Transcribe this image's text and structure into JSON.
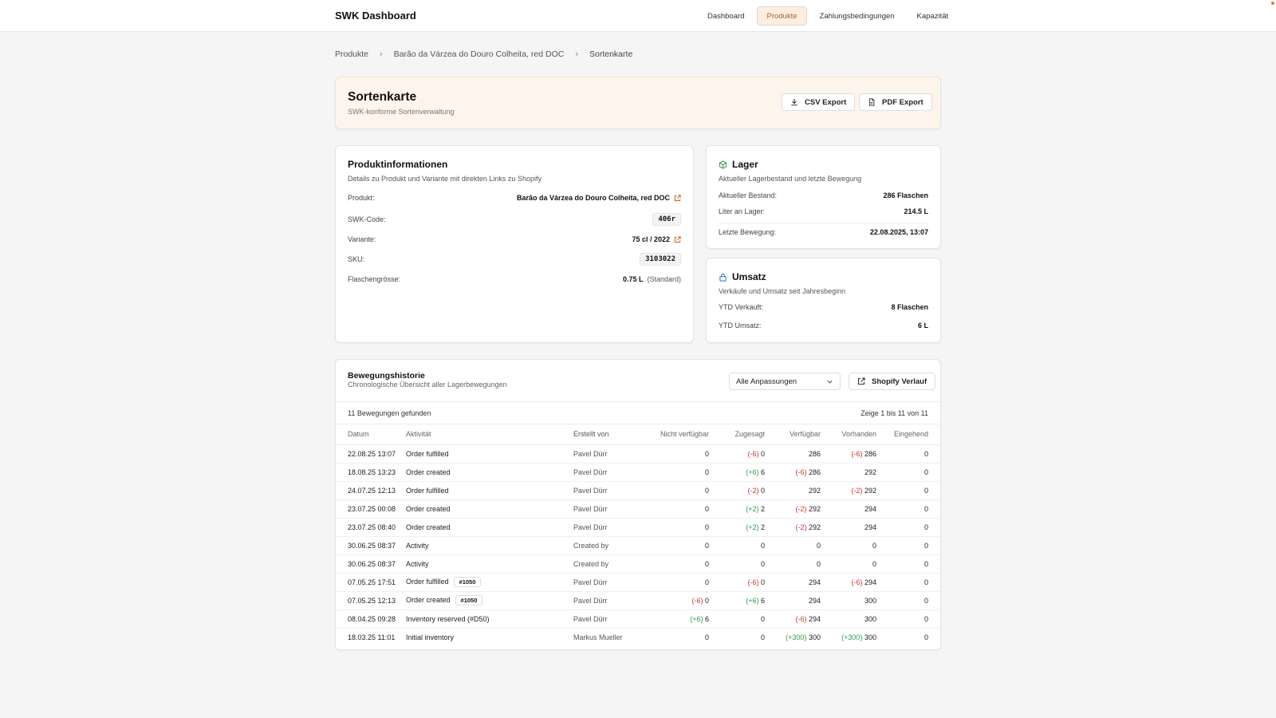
{
  "app": {
    "title": "SWK Dashboard"
  },
  "nav": [
    {
      "label": "Dashboard",
      "active": false
    },
    {
      "label": "Produkte",
      "active": true
    },
    {
      "label": "Zahlungsbedingungen",
      "active": false
    },
    {
      "label": "Kapazität",
      "active": false
    }
  ],
  "breadcrumb": [
    "Produkte",
    "Barão da Várzea do Douro Colheita, red DOC",
    "Sortenkarte"
  ],
  "hero": {
    "title": "Sortenkarte",
    "subtitle": "SWK-konforme Sortenverwaltung",
    "csv_label": "CSV Export",
    "pdf_label": "PDF Export"
  },
  "product": {
    "title": "Produktinformationen",
    "desc": "Details zu Produkt und Variante mit direkten Links zu Shopify",
    "rows": {
      "product_label": "Produkt:",
      "product_value": "Barão da Várzea do Douro Colheita, red DOC",
      "code_label": "SWK-Code:",
      "code_value": "406r",
      "variant_label": "Variante:",
      "variant_value": "75 cl / 2022",
      "sku_label": "SKU:",
      "sku_value": "3103022",
      "size_label": "Flaschengrösse:",
      "size_value": "0.75 L",
      "size_note": "(Standard)"
    }
  },
  "lager": {
    "title": "Lager",
    "desc": "Aktueller Lagerbestand und letzte Bewegung",
    "stock_label": "Aktueller Bestand:",
    "stock_value": "286 Flaschen",
    "liter_label": "Liter an Lager:",
    "liter_value": "214.5 L",
    "last_label": "Letzte Bewegung:",
    "last_value": "22.08.2025, 13:07"
  },
  "umsatz": {
    "title": "Umsatz",
    "desc": "Verkäufe und Umsatz seit Jahresbeginn",
    "sold_label": "YTD Verkauft:",
    "sold_value": "8 Flaschen",
    "rev_label": "YTD Umsatz:",
    "rev_value": "6 L"
  },
  "history": {
    "title": "Bewegungshistorie",
    "subtitle": "Chronologische Übersicht aller Lagerbewegungen",
    "filter": "Alle Anpassungen",
    "shopify_label": "Shopify Verlauf",
    "count_text": "11 Bewegungen gefunden",
    "range_text": "Zeige 1 bis 11 von 11",
    "columns": [
      "Datum",
      "Aktivität",
      "Erstellt von",
      "Nicht verfügbar",
      "Zugesagt",
      "Verfügbar",
      "Vorhanden",
      "Eingehend"
    ],
    "rows": [
      {
        "date": "22.08.25 13:07",
        "activity": "Order fulfilled",
        "tag": "",
        "by": "Pavel Dürr",
        "nv": [
          "",
          "0"
        ],
        "zu": [
          "(-6)",
          "0"
        ],
        "ve": [
          "",
          "286"
        ],
        "vo": [
          "(-6)",
          "286"
        ],
        "ei": [
          "",
          "0"
        ]
      },
      {
        "date": "18.08.25 13:23",
        "activity": "Order created",
        "tag": "",
        "by": "Pavel Dürr",
        "nv": [
          "",
          "0"
        ],
        "zu": [
          "(+6)",
          "6"
        ],
        "ve": [
          "(-6)",
          "286"
        ],
        "vo": [
          "",
          "292"
        ],
        "ei": [
          "",
          "0"
        ]
      },
      {
        "date": "24.07.25 12:13",
        "activity": "Order fulfilled",
        "tag": "",
        "by": "Pavel Dürr",
        "nv": [
          "",
          "0"
        ],
        "zu": [
          "(-2)",
          "0"
        ],
        "ve": [
          "",
          "292"
        ],
        "vo": [
          "(-2)",
          "292"
        ],
        "ei": [
          "",
          "0"
        ]
      },
      {
        "date": "23.07.25 00:08",
        "activity": "Order created",
        "tag": "",
        "by": "Pavel Dürr",
        "nv": [
          "",
          "0"
        ],
        "zu": [
          "(+2)",
          "2"
        ],
        "ve": [
          "(-2)",
          "292"
        ],
        "vo": [
          "",
          "294"
        ],
        "ei": [
          "",
          "0"
        ]
      },
      {
        "date": "23.07.25 08:40",
        "activity": "Order created",
        "tag": "",
        "by": "Pavel Dürr",
        "nv": [
          "",
          "0"
        ],
        "zu": [
          "(+2)",
          "2"
        ],
        "ve": [
          "(-2)",
          "292"
        ],
        "vo": [
          "",
          "294"
        ],
        "ei": [
          "",
          "0"
        ]
      },
      {
        "date": "30.06.25 08:37",
        "activity": "Activity",
        "tag": "",
        "by": "Created by",
        "nv": [
          "",
          "0"
        ],
        "zu": [
          "",
          "0"
        ],
        "ve": [
          "",
          "0"
        ],
        "vo": [
          "",
          "0"
        ],
        "ei": [
          "",
          "0"
        ]
      },
      {
        "date": "30.06.25 08:37",
        "activity": "Activity",
        "tag": "",
        "by": "Created by",
        "nv": [
          "",
          "0"
        ],
        "zu": [
          "",
          "0"
        ],
        "ve": [
          "",
          "0"
        ],
        "vo": [
          "",
          "0"
        ],
        "ei": [
          "",
          "0"
        ]
      },
      {
        "date": "07.05.25 17:51",
        "activity": "Order fulfilled",
        "tag": "#1050",
        "by": "Pavel Dürr",
        "nv": [
          "",
          "0"
        ],
        "zu": [
          "(-6)",
          "0"
        ],
        "ve": [
          "",
          "294"
        ],
        "vo": [
          "(-6)",
          "294"
        ],
        "ei": [
          "",
          "0"
        ]
      },
      {
        "date": "07.05.25 12:13",
        "activity": "Order created",
        "tag": "#1050",
        "by": "Pavel Dürr",
        "nv": [
          "(-6)",
          "0"
        ],
        "zu": [
          "(+6)",
          "6"
        ],
        "ve": [
          "",
          "294"
        ],
        "vo": [
          "",
          "300"
        ],
        "ei": [
          "",
          "0"
        ]
      },
      {
        "date": "08.04.25 09:28",
        "activity": "Inventory reserved (#D50)",
        "tag": "",
        "by": "Pavel Dürr",
        "nv": [
          "(+6)",
          "6"
        ],
        "zu": [
          "",
          "0"
        ],
        "ve": [
          "(-6)",
          "294"
        ],
        "vo": [
          "",
          "300"
        ],
        "ei": [
          "",
          "0"
        ]
      },
      {
        "date": "18.03.25 11:01",
        "activity": "Initial inventory",
        "tag": "",
        "by": "Markus Mueller",
        "nv": [
          "",
          "0"
        ],
        "zu": [
          "",
          "0"
        ],
        "ve": [
          "(+300)",
          "300"
        ],
        "vo": [
          "(+300)",
          "300"
        ],
        "ei": [
          "",
          "0"
        ]
      }
    ]
  },
  "colors": {
    "accent": "#c15f22",
    "positive": "#2f9a4a",
    "negative": "#c0392b",
    "link_blue": "#2c6ecb"
  },
  "icons": {
    "csv": "download-icon",
    "pdf": "document-icon",
    "external": "external-link-icon",
    "lager": "box-icon",
    "umsatz": "lock-icon",
    "dropdown": "chevron-down-icon",
    "breadcrumb": "chevron-right-icon"
  }
}
